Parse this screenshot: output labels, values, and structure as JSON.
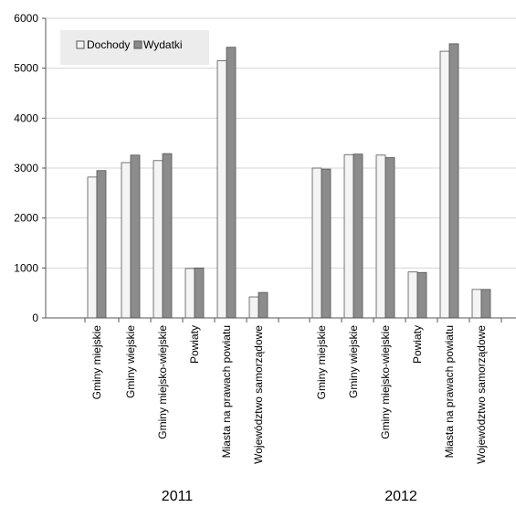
{
  "chart_data": {
    "type": "bar",
    "categories": [
      "Gminy miejskie",
      "Gminy wiejskie",
      "Gminy miejsko-wiejskie",
      "Powiaty",
      "Miasta na prawach powiatu",
      "Województwo samorządowe"
    ],
    "groups": [
      {
        "label": "2011",
        "series": [
          {
            "name": "Dochody",
            "values": [
              2820,
              3110,
              3150,
              990,
              5150,
              420
            ]
          },
          {
            "name": "Wydatki",
            "values": [
              2950,
              3260,
              3290,
              1000,
              5420,
              510
            ]
          }
        ]
      },
      {
        "label": "2012",
        "series": [
          {
            "name": "Dochody",
            "values": [
              3000,
              3270,
              3260,
              920,
              5340,
              570
            ]
          },
          {
            "name": "Wydatki",
            "values": [
              2980,
              3280,
              3210,
              910,
              5490,
              570
            ]
          }
        ]
      }
    ],
    "legend": [
      "Dochody",
      "Wydatki"
    ],
    "legend_position": "top-left",
    "ylim": [
      0,
      6000
    ],
    "yticks": [
      0,
      1000,
      2000,
      3000,
      4000,
      5000,
      6000
    ],
    "colors": {
      "Dochody": "#f4f4f4",
      "Wydatki": "#8c8c8c",
      "grid": "#d4d4d4",
      "axis": "#555555"
    },
    "grid": true
  }
}
